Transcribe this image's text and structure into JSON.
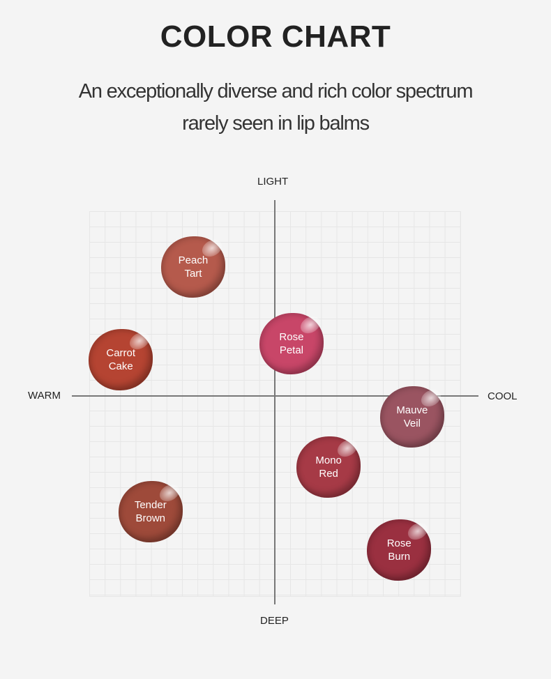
{
  "title": "COLOR CHART",
  "subtitle": [
    "An exceptionally diverse and rich color spectrum",
    "rarely seen in lip balms"
  ],
  "chart_data": {
    "type": "scatter",
    "axes": {
      "left": "WARM",
      "right": "COOL",
      "top": "LIGHT",
      "bottom": "DEEP"
    },
    "xlim": [
      -1,
      1
    ],
    "ylim": [
      -1,
      1
    ],
    "grid": true,
    "points": [
      {
        "name": [
          "Peach",
          "Tart"
        ],
        "x": -0.44,
        "y": 0.67,
        "color": "#b55a4c"
      },
      {
        "name": [
          "Rose",
          "Petal"
        ],
        "x": 0.09,
        "y": 0.27,
        "color": "#c84668"
      },
      {
        "name": [
          "Carrot",
          "Cake"
        ],
        "x": -0.83,
        "y": 0.19,
        "color": "#b54432"
      },
      {
        "name": [
          "Mauve",
          "Veil"
        ],
        "x": 0.74,
        "y": -0.11,
        "color": "#9a5461"
      },
      {
        "name": [
          "Mono",
          "Red"
        ],
        "x": 0.29,
        "y": -0.37,
        "color": "#a63a46"
      },
      {
        "name": [
          "Tender",
          "Brown"
        ],
        "x": -0.67,
        "y": -0.6,
        "color": "#9e4a3a"
      },
      {
        "name": [
          "Rose",
          "Burn"
        ],
        "x": 0.67,
        "y": -0.8,
        "color": "#9a3040"
      }
    ]
  }
}
